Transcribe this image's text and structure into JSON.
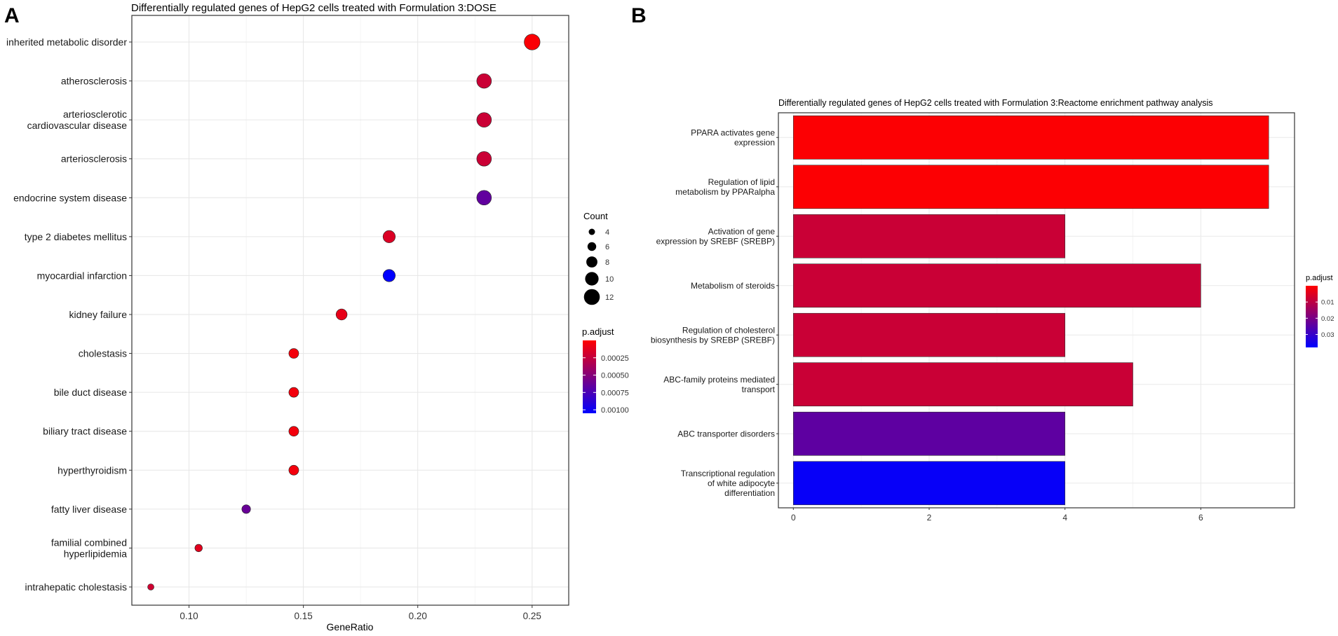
{
  "chart_data": [
    {
      "panel_label": "A",
      "type": "scatter",
      "title": "Differentially regulated genes of HepG2 cells treated with Formulation 3:DOSE",
      "xlabel": "GeneRatio",
      "ylabel": "",
      "xlim": [
        0.075,
        0.266
      ],
      "xticks": [
        0.1,
        0.15,
        0.2,
        0.25
      ],
      "xtick_labels": [
        "0.10",
        "0.15",
        "0.20",
        "0.25"
      ],
      "grid": true,
      "categories": [
        "inherited metabolic disorder",
        "atherosclerosis",
        "arteriosclerotic cardiovascular disease",
        "arteriosclerosis",
        "endocrine system disease",
        "type 2 diabetes mellitus",
        "myocardial infarction",
        "kidney failure",
        "cholestasis",
        "bile duct disease",
        "biliary tract disease",
        "hyperthyroidism",
        "fatty liver disease",
        "familial combined hyperlipidemia",
        "intrahepatic cholestasis"
      ],
      "category_labels": [
        [
          "inherited metabolic disorder"
        ],
        [
          "atherosclerosis"
        ],
        [
          "arteriosclerotic",
          "cardiovascular disease"
        ],
        [
          "arteriosclerosis"
        ],
        [
          "endocrine system disease"
        ],
        [
          "type 2 diabetes mellitus"
        ],
        [
          "myocardial infarction"
        ],
        [
          "kidney failure"
        ],
        [
          "cholestasis"
        ],
        [
          "bile duct disease"
        ],
        [
          "biliary tract disease"
        ],
        [
          "hyperthyroidism"
        ],
        [
          "fatty liver disease"
        ],
        [
          "familial combined",
          "hyperlipidemia"
        ],
        [
          "intrahepatic cholestasis"
        ]
      ],
      "gene_ratio": [
        0.25,
        0.229,
        0.229,
        0.229,
        0.229,
        0.1875,
        0.1875,
        0.1667,
        0.1458,
        0.1458,
        0.1458,
        0.1458,
        0.125,
        0.1042,
        0.0833
      ],
      "count": [
        12,
        11,
        11,
        11,
        11,
        9,
        9,
        8,
        7,
        7,
        7,
        7,
        6,
        5,
        4
      ],
      "p_adjust": [
        2e-05,
        0.00022,
        0.00022,
        0.00022,
        0.00065,
        0.00015,
        0.00105,
        0.0001,
        5e-05,
        5e-05,
        5e-05,
        5e-05,
        0.00062,
        0.00012,
        0.0002
      ],
      "legend_count": {
        "title": "Count",
        "values": [
          4,
          6,
          8,
          10,
          12
        ],
        "labels": [
          "4",
          "6",
          "8",
          "10",
          "12"
        ]
      },
      "legend_color": {
        "title": "p.adjust",
        "ticks": [
          0.00025,
          0.0005,
          0.00075,
          0.001
        ],
        "labels": [
          "0.00025",
          "0.00050",
          "0.00075",
          "0.00100"
        ],
        "range": [
          0.0,
          0.00105
        ],
        "low_color": "#FF0000",
        "high_color": "#0000FF"
      }
    },
    {
      "panel_label": "B",
      "type": "bar",
      "orientation": "horizontal",
      "title": "Differentially regulated genes of HepG2 cells treated with Formulation 3:Reactome enrichment pathway analysis",
      "xlabel": "",
      "ylabel": "",
      "xlim": [
        -0.22,
        7.38
      ],
      "xticks": [
        0,
        2,
        4,
        6
      ],
      "xtick_labels": [
        "0",
        "2",
        "4",
        "6"
      ],
      "grid": true,
      "categories": [
        "PPARA activates gene expression",
        "Regulation of lipid metabolism by PPARalpha",
        "Activation of gene expression by SREBF (SREBP)",
        "Metabolism of steroids",
        "Regulation of cholesterol biosynthesis by SREBP (SREBF)",
        "ABC-family proteins mediated transport",
        "ABC transporter disorders",
        "Transcriptional regulation of white adipocyte differentiation"
      ],
      "category_labels": [
        [
          "PPARA activates gene",
          "expression"
        ],
        [
          "Regulation of lipid",
          "metabolism by PPARalpha"
        ],
        [
          "Activation of gene",
          "expression by SREBF (SREBP)"
        ],
        [
          "Metabolism of steroids"
        ],
        [
          "Regulation of cholesterol",
          "biosynthesis by SREBP (SREBF)"
        ],
        [
          "ABC-family proteins mediated",
          "transport"
        ],
        [
          "ABC transporter disorders"
        ],
        [
          "Transcriptional regulation",
          "of white adipocyte",
          "differentiation"
        ]
      ],
      "values": [
        7,
        7,
        4,
        6,
        4,
        5,
        4,
        4
      ],
      "p_adjust": [
        0.0005,
        0.0005,
        0.008,
        0.008,
        0.008,
        0.008,
        0.024,
        0.037
      ],
      "legend_color": {
        "title": "p.adjust",
        "ticks": [
          0.01,
          0.02,
          0.03
        ],
        "labels": [
          "0.01",
          "0.02",
          "0.03"
        ],
        "range": [
          0.0,
          0.038
        ],
        "low_color": "#FF0000",
        "high_color": "#0000FF"
      }
    }
  ]
}
